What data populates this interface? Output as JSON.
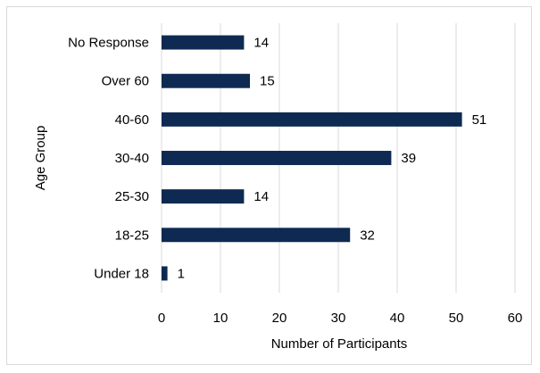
{
  "chart_data": {
    "type": "bar",
    "orientation": "horizontal",
    "title": "",
    "xlabel": "Number of Participants",
    "ylabel": "Age Group",
    "categories": [
      "No Response",
      "Over 60",
      "40-60",
      "30-40",
      "25-30",
      "18-25",
      "Under 18"
    ],
    "values": [
      14,
      15,
      51,
      39,
      14,
      32,
      1
    ],
    "xlim": [
      0,
      60
    ],
    "xticks": [
      0,
      10,
      20,
      30,
      40,
      50,
      60
    ],
    "grid": true,
    "legend": "none",
    "data_labels": true,
    "bar_color": "#0e2a52"
  }
}
